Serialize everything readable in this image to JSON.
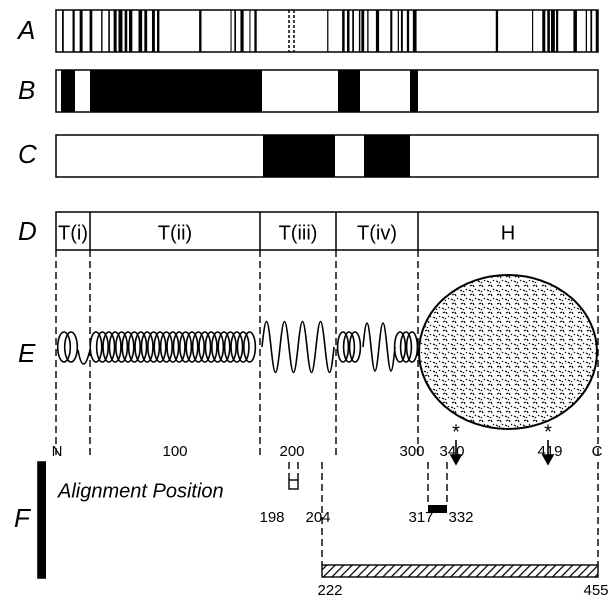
{
  "rows": [
    "A",
    "B",
    "C",
    "D",
    "E",
    "F"
  ],
  "domains": [
    "T(i)",
    "T(ii)",
    "T(iii)",
    "T(iv)",
    "H"
  ],
  "axis": {
    "ticks": [
      "N",
      "100",
      "200",
      "300",
      "340",
      "419",
      "C"
    ],
    "title": "Alignment Position",
    "markers": [
      "*",
      "*"
    ]
  },
  "ranges": [
    {
      "from": "198",
      "to": "204"
    },
    {
      "from": "317",
      "to": "332"
    },
    {
      "from": "222",
      "to": "455"
    }
  ]
}
